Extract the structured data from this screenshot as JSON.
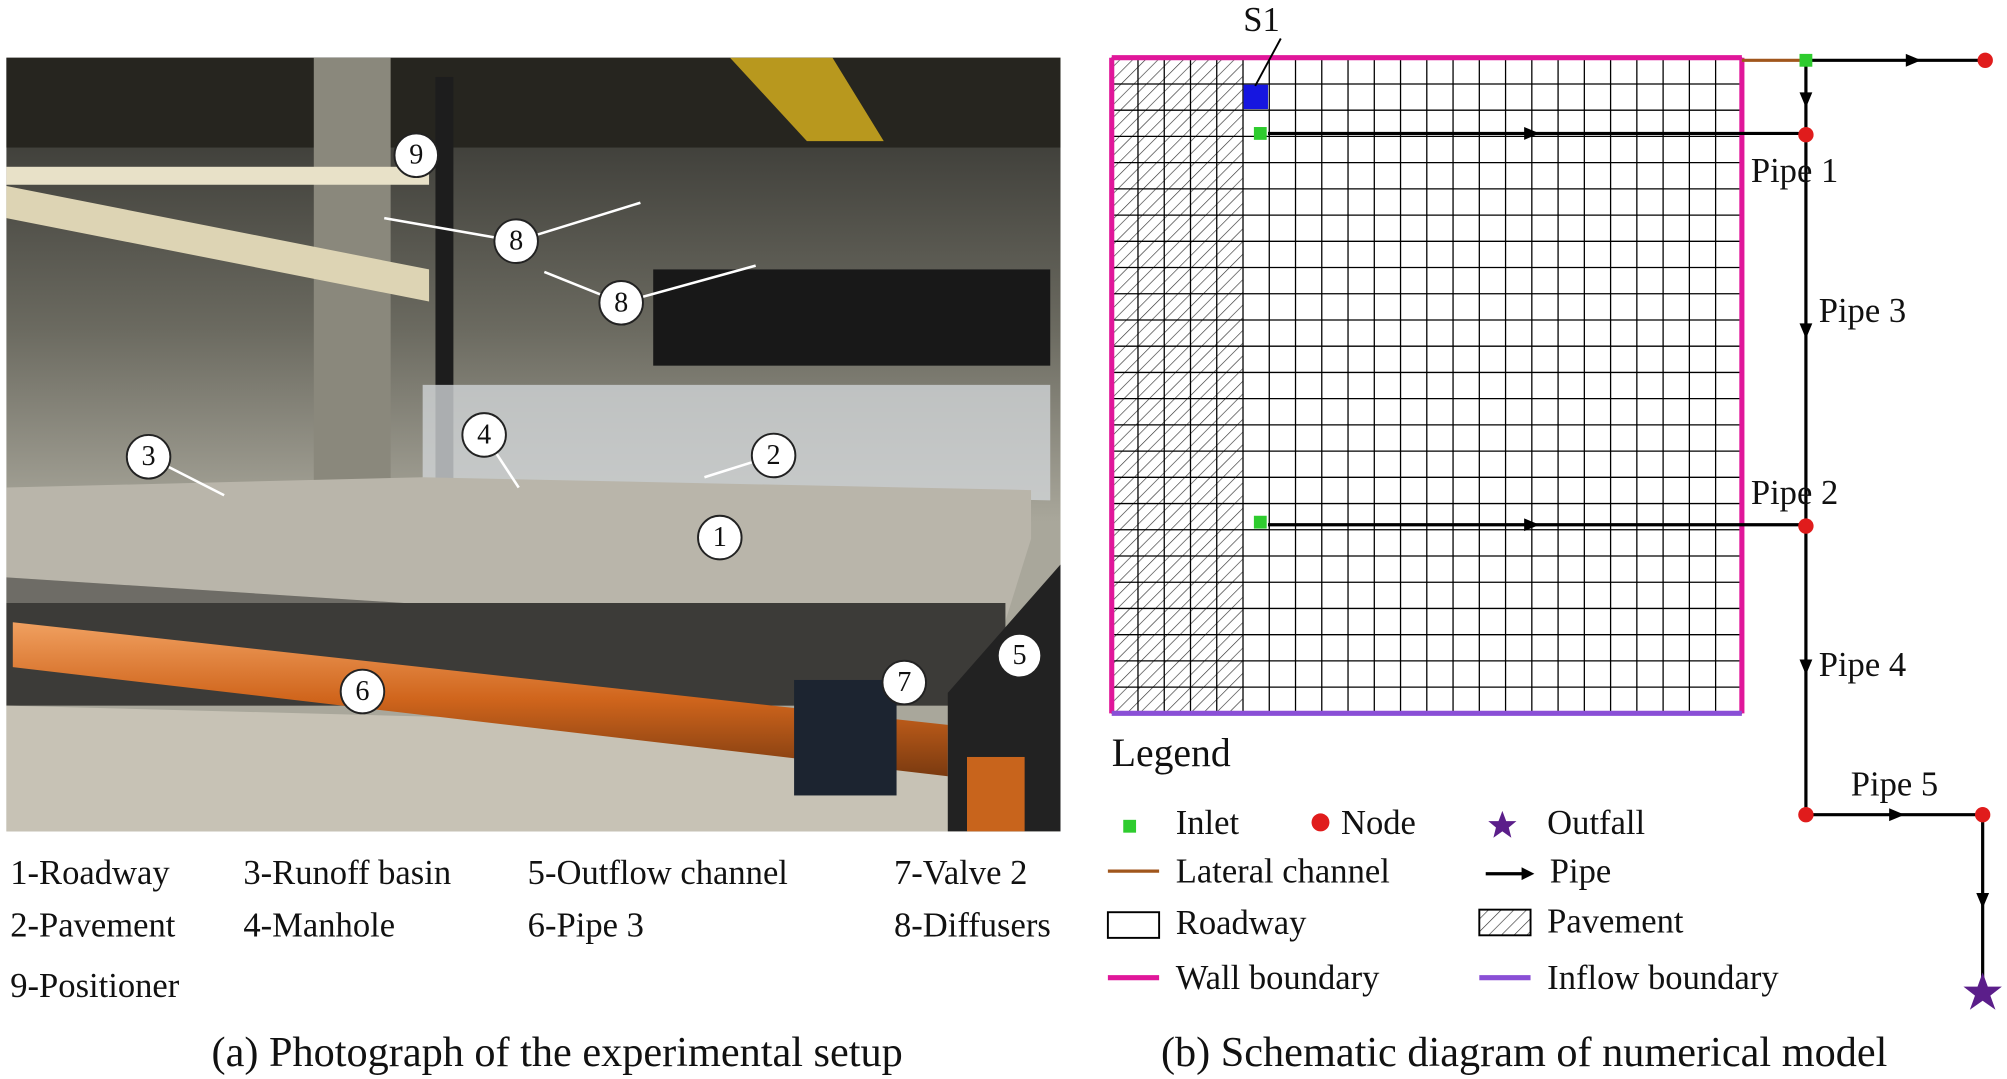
{
  "photo": {
    "markers": [
      "9",
      "8",
      "8",
      "4",
      "3",
      "2",
      "1",
      "6",
      "7",
      "5"
    ],
    "key": [
      "1-Roadway",
      "3-Runoff basin",
      "5-Outflow channel",
      "7-Valve 2",
      "2-Pavement",
      "4-Manhole",
      "6-Pipe 3",
      "8-Diffusers",
      "9-Positioner"
    ],
    "caption": "(a) Photograph of the experimental setup"
  },
  "schematic": {
    "source_label": "S1",
    "pipes": [
      "Pipe 1",
      "Pipe 3",
      "Pipe 2",
      "Pipe 4",
      "Pipe 5"
    ],
    "legend": {
      "title": "Legend",
      "items": [
        "Inlet",
        "Node",
        "Outfall",
        "Lateral channel",
        "Pipe",
        "Roadway",
        "Pavement",
        "Wall boundary",
        "Inflow boundary"
      ]
    },
    "caption": "(b) Schematic diagram of numerical model"
  }
}
